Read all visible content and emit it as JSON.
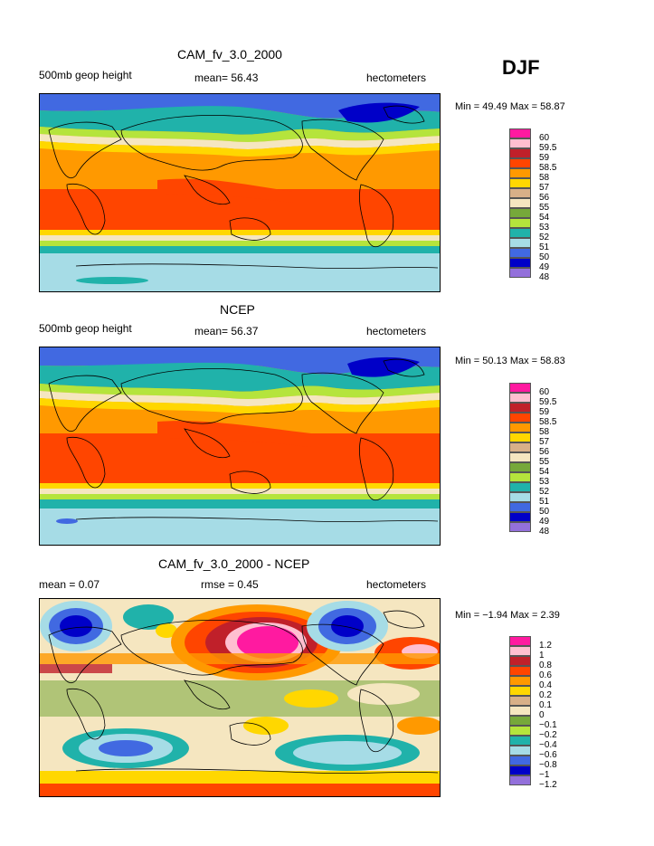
{
  "season": "DJF",
  "panels": [
    {
      "title": "CAM_fv_3.0_2000",
      "left_label": "500mb geop height",
      "center_label": "mean=  56.43",
      "right_label": "hectometers",
      "minmax": "Min =  49.49 Max =  58.87",
      "legend": [
        "60",
        "59.5",
        "59",
        "58.5",
        "58",
        "57",
        "56",
        "55",
        "54",
        "53",
        "52",
        "51",
        "50",
        "49",
        "48"
      ],
      "colors": [
        "#ff1aa0",
        "#ffbfd0",
        "#c0202a",
        "#ff4500",
        "#ff9900",
        "#ffd700",
        "#d8b088",
        "#f5e6c0",
        "#76a83a",
        "#b5e43c",
        "#20b2aa",
        "#a6dce6",
        "#4169e1",
        "#0000c8",
        "#9370db"
      ]
    },
    {
      "title": "NCEP",
      "left_label": "500mb geop height",
      "center_label": "mean=  56.37",
      "right_label": "hectometers",
      "minmax": "Min =  50.13 Max =  58.83",
      "legend": [
        "60",
        "59.5",
        "59",
        "58.5",
        "58",
        "57",
        "56",
        "55",
        "54",
        "53",
        "52",
        "51",
        "50",
        "49",
        "48"
      ],
      "colors": [
        "#ff1aa0",
        "#ffbfd0",
        "#c0202a",
        "#ff4500",
        "#ff9900",
        "#ffd700",
        "#d8b088",
        "#f5e6c0",
        "#76a83a",
        "#b5e43c",
        "#20b2aa",
        "#a6dce6",
        "#4169e1",
        "#0000c8",
        "#9370db"
      ]
    },
    {
      "title": "CAM_fv_3.0_2000 - NCEP",
      "left_label": "mean =   0.07",
      "center_label": "rmse =   0.45",
      "right_label": "hectometers",
      "minmax": "Min =  −1.94 Max =   2.39",
      "legend": [
        "1.2",
        "1",
        "0.8",
        "0.6",
        "0.4",
        "0.2",
        "0.1",
        "0",
        "−0.1",
        "−0.2",
        "−0.4",
        "−0.6",
        "−0.8",
        "−1",
        "−1.2"
      ],
      "colors": [
        "#ff1aa0",
        "#ffbfd0",
        "#c0202a",
        "#ff4500",
        "#ff9900",
        "#ffd700",
        "#d8b088",
        "#f5e6c0",
        "#76a83a",
        "#b5e43c",
        "#20b2aa",
        "#a6dce6",
        "#4169e1",
        "#0000c8",
        "#9370db"
      ]
    }
  ],
  "chart_data": [
    {
      "type": "heatmap",
      "title": "CAM_fv_3.0_2000",
      "variable": "500mb geop height",
      "units": "hectometers",
      "mean": 56.43,
      "min": 49.49,
      "max": 58.87,
      "season": "DJF",
      "levels": [
        48,
        49,
        50,
        51,
        52,
        53,
        54,
        55,
        56,
        57,
        58,
        58.5,
        59,
        59.5,
        60
      ]
    },
    {
      "type": "heatmap",
      "title": "NCEP",
      "variable": "500mb geop height",
      "units": "hectometers",
      "mean": 56.37,
      "min": 50.13,
      "max": 58.83,
      "season": "DJF",
      "levels": [
        48,
        49,
        50,
        51,
        52,
        53,
        54,
        55,
        56,
        57,
        58,
        58.5,
        59,
        59.5,
        60
      ]
    },
    {
      "type": "heatmap",
      "title": "CAM_fv_3.0_2000 - NCEP",
      "units": "hectometers",
      "mean": 0.07,
      "rmse": 0.45,
      "min": -1.94,
      "max": 2.39,
      "season": "DJF",
      "levels": [
        -1.2,
        -1,
        -0.8,
        -0.6,
        -0.4,
        -0.2,
        -0.1,
        0,
        0.1,
        0.2,
        0.4,
        0.6,
        0.8,
        1,
        1.2
      ]
    }
  ]
}
